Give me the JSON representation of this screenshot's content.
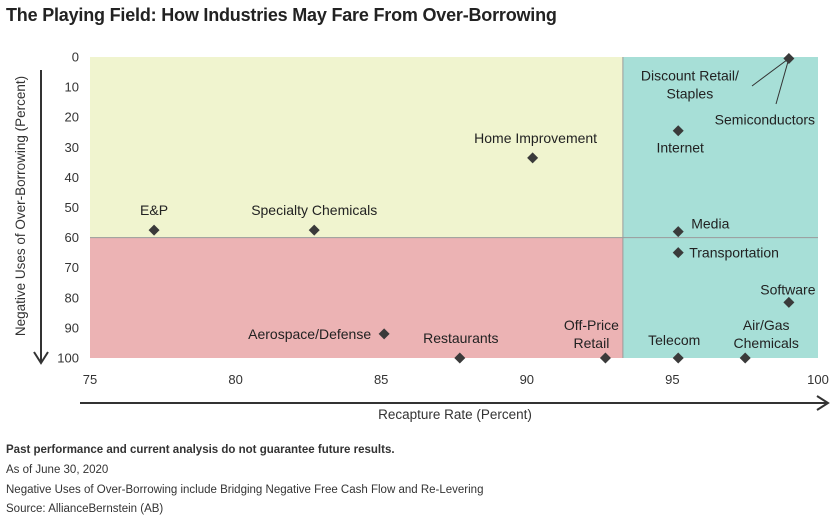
{
  "title": "The Playing Field: How Industries May Fare From Over-Borrowing",
  "chart_data": {
    "type": "scatter",
    "xlabel": "Recapture Rate (Percent)",
    "ylabel": "Negative Uses of Over-Borrowing (Percent)",
    "xlim": [
      75,
      100
    ],
    "ylim": [
      0,
      100
    ],
    "y_inverted": true,
    "x_ticks": [
      "75",
      "80",
      "85",
      "90",
      "95",
      "100"
    ],
    "y_ticks": [
      "0",
      "10",
      "20",
      "30",
      "40",
      "50",
      "60",
      "70",
      "80",
      "90",
      "100"
    ],
    "quadrant_split": {
      "x": 93.3,
      "y": 60
    },
    "quadrant_colors": {
      "top_left": "#f0f4cf",
      "bottom_left": "#ecb3b4",
      "right": "#a7dfd7"
    },
    "points": [
      {
        "label": "E&P",
        "x": 77.2,
        "y": 57.5
      },
      {
        "label": "Specialty Chemicals",
        "x": 82.7,
        "y": 57.5
      },
      {
        "label": "Home Improvement",
        "x": 90.2,
        "y": 33.5
      },
      {
        "label": "Aerospace/Defense",
        "x": 85.1,
        "y": 92
      },
      {
        "label": "Restaurants",
        "x": 87.7,
        "y": 100
      },
      {
        "label": "Off-Price Retail",
        "x": 92.7,
        "y": 100
      },
      {
        "label": "Discount Retail/ Staples",
        "x": 99.0,
        "y": 0.5
      },
      {
        "label": "Semiconductors",
        "x": 99.0,
        "y": 0.5
      },
      {
        "label": "Internet",
        "x": 95.2,
        "y": 24.5
      },
      {
        "label": "Media",
        "x": 95.2,
        "y": 58
      },
      {
        "label": "Transportation",
        "x": 95.2,
        "y": 65
      },
      {
        "label": "Software",
        "x": 99.0,
        "y": 81.5
      },
      {
        "label": "Telecom",
        "x": 95.2,
        "y": 100
      },
      {
        "label": "Air/Gas Chemicals",
        "x": 97.5,
        "y": 100
      }
    ]
  },
  "footer": {
    "disclaimer": "Past performance and current analysis do not guarantee future results.",
    "date": "As of June 30, 2020",
    "note": "Negative Uses of Over-Borrowing include Bridging Negative Free Cash Flow and Re-Levering",
    "source": "Source: AllianceBernstein (AB)"
  }
}
